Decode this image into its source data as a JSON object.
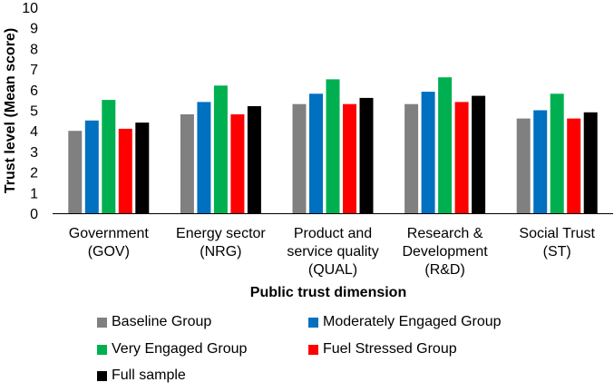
{
  "chart_data": {
    "type": "bar",
    "title": "",
    "xlabel": "Public trust dimension",
    "ylabel": "Trust level (Mean score)",
    "ylim": [
      0,
      10
    ],
    "yticks": [
      "0",
      "1",
      "2",
      "3",
      "4",
      "5",
      "6",
      "7",
      "8",
      "9",
      "10"
    ],
    "grid": false,
    "legend_position": "bottom",
    "categories": [
      [
        "Government",
        "(GOV)"
      ],
      [
        "Energy sector",
        "(NRG)"
      ],
      [
        "Product and",
        "service quality",
        "(QUAL)"
      ],
      [
        "Research &",
        "Development",
        "(R&D)"
      ],
      [
        "Social Trust",
        "(ST)"
      ]
    ],
    "series": [
      {
        "name": "Baseline Group",
        "color": "#808080",
        "values": [
          4.0,
          4.8,
          5.3,
          5.3,
          4.6
        ]
      },
      {
        "name": "Moderately Engaged Group",
        "color": "#0070C0",
        "values": [
          4.5,
          5.4,
          5.8,
          5.9,
          5.0
        ]
      },
      {
        "name": "Very Engaged Group",
        "color": "#00B050",
        "values": [
          5.5,
          6.2,
          6.5,
          6.6,
          5.8
        ]
      },
      {
        "name": "Fuel Stressed Group",
        "color": "#FF0000",
        "values": [
          4.1,
          4.8,
          5.3,
          5.4,
          4.6
        ]
      },
      {
        "name": "Full sample",
        "color": "#000000",
        "values": [
          4.4,
          5.2,
          5.6,
          5.7,
          4.9
        ]
      }
    ]
  }
}
